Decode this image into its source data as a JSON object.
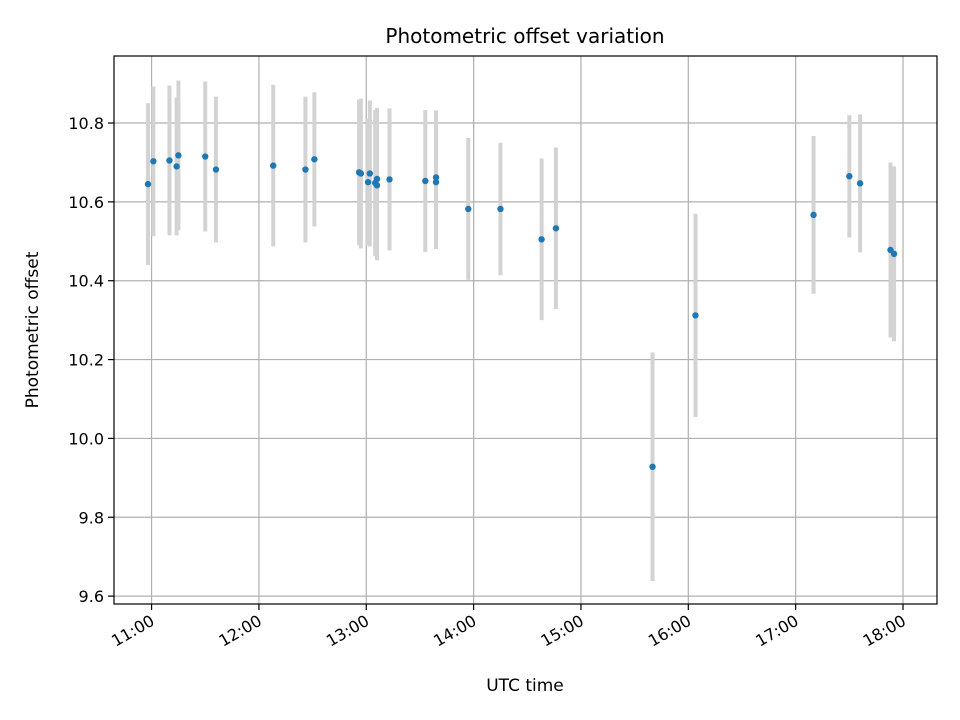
{
  "chart_data": {
    "type": "scatter",
    "title": "Photometric offset variation",
    "xlabel": "UTC time",
    "ylabel": "Photometric offset",
    "x_ticks": [
      "11:00",
      "12:00",
      "13:00",
      "14:00",
      "15:00",
      "16:00",
      "17:00",
      "18:00"
    ],
    "y_ticks": [
      "9.6",
      "9.8",
      "10.0",
      "10.2",
      "10.4",
      "10.6",
      "10.8"
    ],
    "xlim": [
      "10:39",
      "18:19"
    ],
    "ylim": [
      9.58,
      10.97
    ],
    "grid": true,
    "colors": {
      "point": "#1f77b4",
      "errorbar": "#d3d3d3",
      "grid": "#b0b0b0"
    },
    "series": [
      {
        "points": [
          {
            "t": "10:58",
            "y": 10.645,
            "err": 0.205
          },
          {
            "t": "11:01",
            "y": 10.703,
            "err": 0.19
          },
          {
            "t": "11:10",
            "y": 10.705,
            "err": 0.19
          },
          {
            "t": "11:14",
            "y": 10.69,
            "err": 0.175
          },
          {
            "t": "11:15",
            "y": 10.718,
            "err": 0.19
          },
          {
            "t": "11:30",
            "y": 10.715,
            "err": 0.19
          },
          {
            "t": "11:36",
            "y": 10.682,
            "err": 0.185
          },
          {
            "t": "12:08",
            "y": 10.692,
            "err": 0.205
          },
          {
            "t": "12:26",
            "y": 10.682,
            "err": 0.185
          },
          {
            "t": "12:31",
            "y": 10.708,
            "err": 0.17
          },
          {
            "t": "12:56",
            "y": 10.675,
            "err": 0.185
          },
          {
            "t": "12:57",
            "y": 10.672,
            "err": 0.19
          },
          {
            "t": "13:01",
            "y": 10.65,
            "err": 0.16
          },
          {
            "t": "13:02",
            "y": 10.672,
            "err": 0.185
          },
          {
            "t": "13:05",
            "y": 10.648,
            "err": 0.185
          },
          {
            "t": "13:06",
            "y": 10.642,
            "err": 0.19
          },
          {
            "t": "13:06",
            "y": 10.658,
            "err": 0.18
          },
          {
            "t": "13:13",
            "y": 10.657,
            "err": 0.18
          },
          {
            "t": "13:33",
            "y": 10.653,
            "err": 0.18
          },
          {
            "t": "13:39",
            "y": 10.662,
            "err": 0.17
          },
          {
            "t": "13:39",
            "y": 10.65,
            "err": 0.17
          },
          {
            "t": "13:57",
            "y": 10.582,
            "err": 0.18
          },
          {
            "t": "14:15",
            "y": 10.582,
            "err": 0.168
          },
          {
            "t": "14:38",
            "y": 10.505,
            "err": 0.205
          },
          {
            "t": "14:46",
            "y": 10.533,
            "err": 0.205
          },
          {
            "t": "15:40",
            "y": 9.928,
            "err": 0.29
          },
          {
            "t": "16:04",
            "y": 10.312,
            "err": 0.258
          },
          {
            "t": "17:10",
            "y": 10.567,
            "err": 0.2
          },
          {
            "t": "17:30",
            "y": 10.665,
            "err": 0.155
          },
          {
            "t": "17:36",
            "y": 10.647,
            "err": 0.175
          },
          {
            "t": "17:53",
            "y": 10.478,
            "err": 0.222
          },
          {
            "t": "17:55",
            "y": 10.468,
            "err": 0.222
          }
        ]
      }
    ]
  }
}
